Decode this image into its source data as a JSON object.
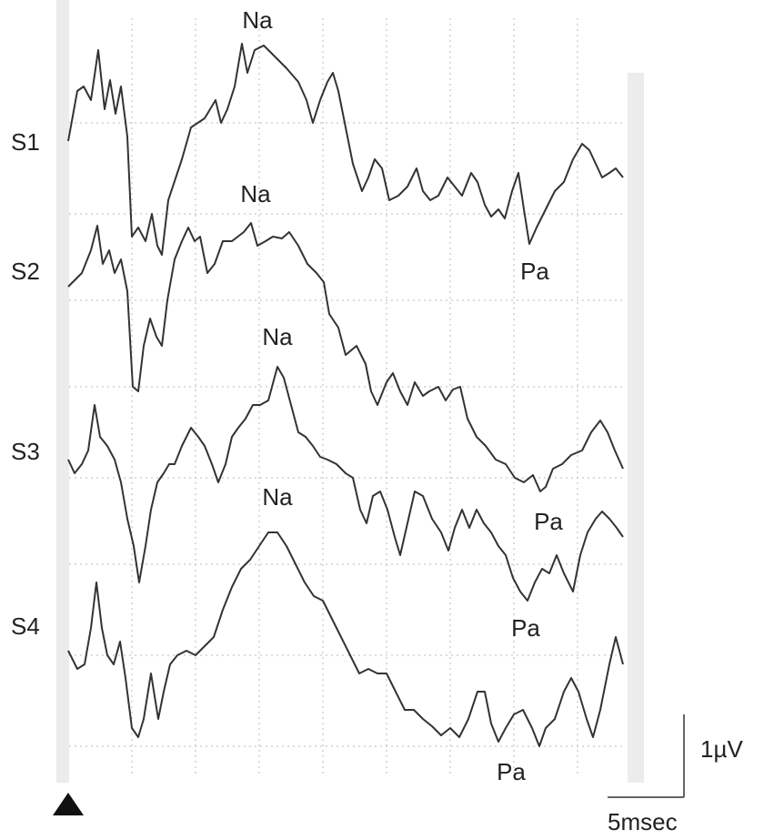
{
  "traces": [
    {
      "name": "S1",
      "peaks": [
        "Na",
        "Pa"
      ]
    },
    {
      "name": "S2",
      "peaks": [
        "Na",
        "Pa"
      ]
    },
    {
      "name": "S3",
      "peaks": [
        "Na",
        "Pa"
      ]
    },
    {
      "name": "S4",
      "peaks": [
        "Na",
        "Pa"
      ]
    }
  ],
  "scale": {
    "voltage": "1µV",
    "time": "5msec"
  }
}
